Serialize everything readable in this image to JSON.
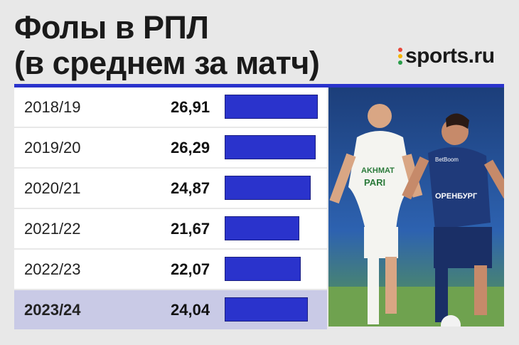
{
  "title": {
    "line1": "Фолы в РПЛ",
    "line2": "(в среднем за матч)"
  },
  "brand": {
    "name": "sports.ru",
    "dot_colors": [
      "#e8473a",
      "#f4b400",
      "#2a9d4a",
      "#7b3fbf"
    ]
  },
  "colors": {
    "bar": "#2a33cc",
    "highlight_row": "#c9cae6",
    "rule": "#2a33cc"
  },
  "photo": {
    "description_icon": "football-players-photo",
    "shirt_texts": [
      "AKHMAT",
      "PARI",
      "ОРЕНБУРГ",
      "BetBoom"
    ]
  },
  "chart_data": {
    "type": "bar",
    "orientation": "horizontal",
    "title": "Фолы в РПЛ (в среднем за матч)",
    "categories": [
      "2018/19",
      "2019/20",
      "2020/21",
      "2021/22",
      "2022/23",
      "2023/24"
    ],
    "values": [
      26.91,
      26.29,
      24.87,
      21.67,
      22.07,
      24.04
    ],
    "value_labels": [
      "26,91",
      "26,29",
      "24,87",
      "21,67",
      "22,07",
      "24,04"
    ],
    "highlighted_category": "2023/24",
    "xlim": [
      0,
      26.91
    ]
  }
}
